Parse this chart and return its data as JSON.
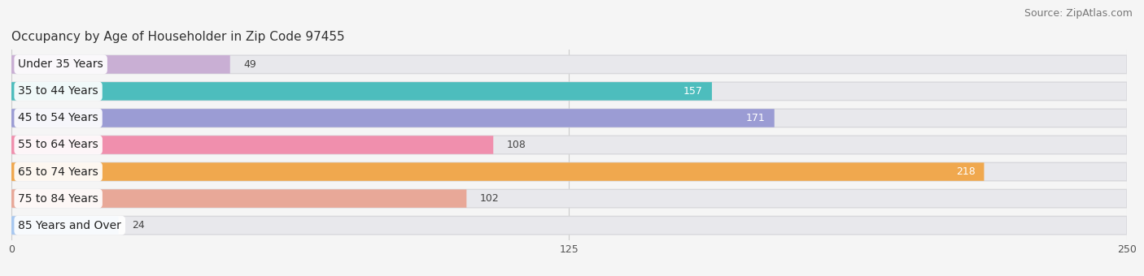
{
  "title": "Occupancy by Age of Householder in Zip Code 97455",
  "source": "Source: ZipAtlas.com",
  "categories": [
    "Under 35 Years",
    "35 to 44 Years",
    "45 to 54 Years",
    "55 to 64 Years",
    "65 to 74 Years",
    "75 to 84 Years",
    "85 Years and Over"
  ],
  "values": [
    49,
    157,
    171,
    108,
    218,
    102,
    24
  ],
  "bar_colors": [
    "#c9afd4",
    "#4dbdbd",
    "#9b9cd4",
    "#f08fad",
    "#f0a84e",
    "#e8a898",
    "#a8c8f0"
  ],
  "label_colors": [
    "#444444",
    "#ffffff",
    "#ffffff",
    "#444444",
    "#ffffff",
    "#444444",
    "#444444"
  ],
  "xlim": [
    0,
    250
  ],
  "xticks": [
    0,
    125,
    250
  ],
  "bar_bg_color": "#e8e8ec",
  "fig_bg_color": "#f5f5f5",
  "title_fontsize": 11,
  "source_fontsize": 9,
  "tick_fontsize": 9,
  "label_fontsize": 10,
  "value_fontsize": 9,
  "bar_height": 0.68,
  "figsize": [
    14.06,
    3.4
  ],
  "dpi": 100
}
